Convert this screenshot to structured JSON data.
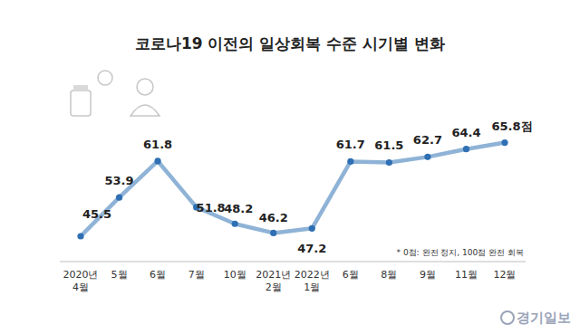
{
  "chart_data": {
    "type": "line",
    "title": "코로나19 이전의 일상회복 수준 시기별 변화",
    "categories": [
      "2020년 4월",
      "5월",
      "6월",
      "7월",
      "10월",
      "2021년 2월",
      "2022년 1월",
      "6월",
      "8월",
      "9월",
      "11월",
      "12월"
    ],
    "values": [
      45.5,
      53.9,
      61.8,
      51.8,
      48.2,
      46.2,
      47.2,
      61.7,
      61.5,
      62.7,
      64.4,
      65.8
    ],
    "value_labels": [
      "45.5",
      "53.9",
      "61.8",
      "51.8",
      "48.2",
      "46.2",
      "47.2",
      "61.7",
      "61.5",
      "62.7",
      "64.4",
      "65.8점"
    ],
    "color": "#8fb3d6",
    "marker": "circle",
    "data_labels": true,
    "tick_labels": "x",
    "ylim": [
      40,
      72
    ],
    "annotations": [
      "* 0점: 완전 정지, 100점 완전 회복"
    ],
    "source": "경기일보"
  }
}
